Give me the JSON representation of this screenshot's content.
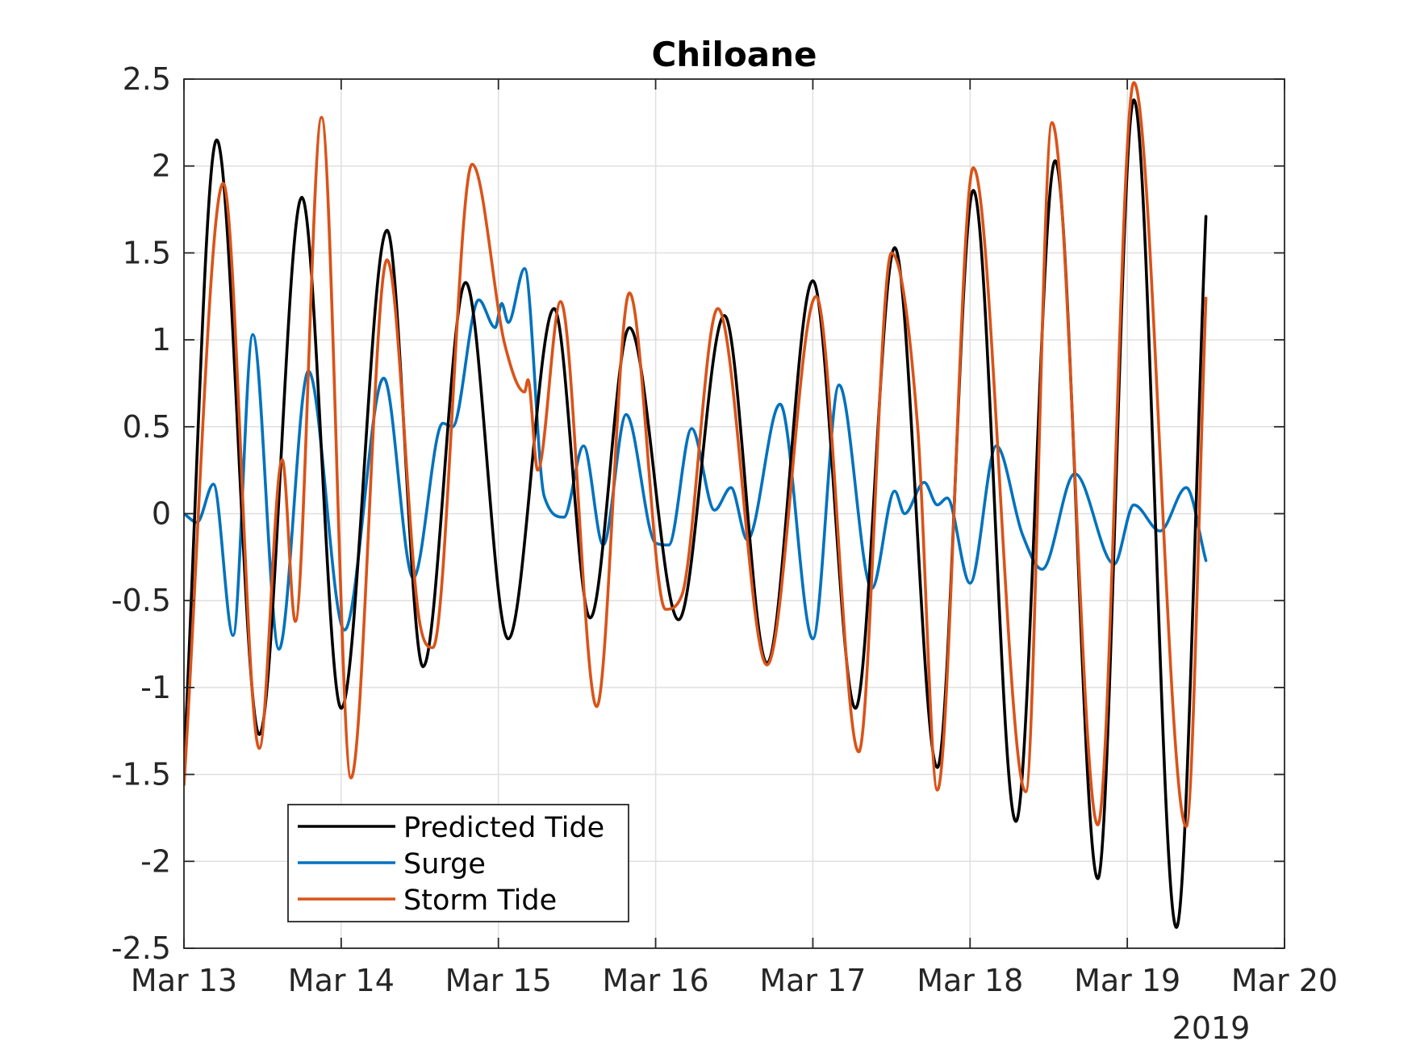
{
  "chart_data": {
    "type": "line",
    "title": "Chiloane",
    "xlabel": "",
    "ylabel": "",
    "x_unit": "date (March 2019)",
    "x_year_label": "2019",
    "xlim": [
      "2019-03-13T00:00",
      "2019-03-20T00:00"
    ],
    "ylim": [
      -2.5,
      2.5
    ],
    "x_ticks": [
      {
        "value": "2019-03-13",
        "label": "Mar 13"
      },
      {
        "value": "2019-03-14",
        "label": "Mar 14"
      },
      {
        "value": "2019-03-15",
        "label": "Mar 15"
      },
      {
        "value": "2019-03-16",
        "label": "Mar 16"
      },
      {
        "value": "2019-03-17",
        "label": "Mar 17"
      },
      {
        "value": "2019-03-18",
        "label": "Mar 18"
      },
      {
        "value": "2019-03-19",
        "label": "Mar 19"
      },
      {
        "value": "2019-03-20",
        "label": "Mar 20"
      }
    ],
    "y_ticks": [
      {
        "value": 2.5,
        "label": "2.5"
      },
      {
        "value": 2,
        "label": "2"
      },
      {
        "value": 1.5,
        "label": "1.5"
      },
      {
        "value": 1,
        "label": "1"
      },
      {
        "value": 0.5,
        "label": "0.5"
      },
      {
        "value": 0,
        "label": "0"
      },
      {
        "value": -0.5,
        "label": "-0.5"
      },
      {
        "value": -1,
        "label": "-1"
      },
      {
        "value": -1.5,
        "label": "-1.5"
      },
      {
        "value": -2,
        "label": "-2"
      },
      {
        "value": -2.5,
        "label": "-2.5"
      }
    ],
    "grid": true,
    "legend_position": "bottom-left",
    "series": [
      {
        "name": "Predicted Tide",
        "color": "#000000",
        "points": [
          [
            "2019-03-13T00:00",
            -1.44
          ],
          [
            "2019-03-13T05:00",
            2.15
          ],
          [
            "2019-03-13T11:30",
            -1.27
          ],
          [
            "2019-03-13T18:00",
            1.82
          ],
          [
            "2019-03-14T00:00",
            -1.12
          ],
          [
            "2019-03-14T07:00",
            1.63
          ],
          [
            "2019-03-14T12:30",
            -0.88
          ],
          [
            "2019-03-14T19:00",
            1.33
          ],
          [
            "2019-03-15T01:30",
            -0.72
          ],
          [
            "2019-03-15T08:30",
            1.18
          ],
          [
            "2019-03-15T14:00",
            -0.6
          ],
          [
            "2019-03-15T20:00",
            1.07
          ],
          [
            "2019-03-16T03:30",
            -0.61
          ],
          [
            "2019-03-16T10:30",
            1.14
          ],
          [
            "2019-03-16T17:00",
            -0.86
          ],
          [
            "2019-03-17T00:00",
            1.34
          ],
          [
            "2019-03-17T06:30",
            -1.12
          ],
          [
            "2019-03-17T12:30",
            1.53
          ],
          [
            "2019-03-17T19:00",
            -1.46
          ],
          [
            "2019-03-18T00:30",
            1.86
          ],
          [
            "2019-03-18T07:00",
            -1.77
          ],
          [
            "2019-03-18T13:00",
            2.03
          ],
          [
            "2019-03-18T19:30",
            -2.1
          ],
          [
            "2019-03-19T01:00",
            2.38
          ],
          [
            "2019-03-19T07:30",
            -2.38
          ],
          [
            "2019-03-19T12:00",
            1.71
          ]
        ]
      },
      {
        "name": "Surge",
        "color": "#0072bd",
        "points": [
          [
            "2019-03-13T00:00",
            0.0
          ],
          [
            "2019-03-13T02:00",
            -0.05
          ],
          [
            "2019-03-13T04:30",
            0.17
          ],
          [
            "2019-03-13T07:30",
            -0.7
          ],
          [
            "2019-03-13T10:30",
            1.03
          ],
          [
            "2019-03-13T14:30",
            -0.78
          ],
          [
            "2019-03-13T19:00",
            0.82
          ],
          [
            "2019-03-14T00:30",
            -0.67
          ],
          [
            "2019-03-14T06:30",
            0.78
          ],
          [
            "2019-03-14T11:00",
            -0.37
          ],
          [
            "2019-03-14T15:30",
            0.52
          ],
          [
            "2019-03-14T17:00",
            0.5
          ],
          [
            "2019-03-14T21:00",
            1.23
          ],
          [
            "2019-03-14T23:30",
            1.07
          ],
          [
            "2019-03-15T00:30",
            1.21
          ],
          [
            "2019-03-15T01:30",
            1.1
          ],
          [
            "2019-03-15T04:00",
            1.41
          ],
          [
            "2019-03-15T07:00",
            0.1
          ],
          [
            "2019-03-15T10:00",
            -0.02
          ],
          [
            "2019-03-15T13:00",
            0.39
          ],
          [
            "2019-03-15T16:00",
            -0.18
          ],
          [
            "2019-03-15T19:30",
            0.57
          ],
          [
            "2019-03-16T00:00",
            -0.17
          ],
          [
            "2019-03-16T02:00",
            -0.18
          ],
          [
            "2019-03-16T05:30",
            0.49
          ],
          [
            "2019-03-16T09:00",
            0.02
          ],
          [
            "2019-03-16T11:30",
            0.15
          ],
          [
            "2019-03-16T14:00",
            -0.15
          ],
          [
            "2019-03-16T19:00",
            0.63
          ],
          [
            "2019-03-17T00:00",
            -0.72
          ],
          [
            "2019-03-17T04:00",
            0.74
          ],
          [
            "2019-03-17T09:00",
            -0.43
          ],
          [
            "2019-03-17T12:30",
            0.13
          ],
          [
            "2019-03-17T14:00",
            0.0
          ],
          [
            "2019-03-17T17:00",
            0.18
          ],
          [
            "2019-03-17T19:00",
            0.05
          ],
          [
            "2019-03-17T20:30",
            0.09
          ],
          [
            "2019-03-18T00:00",
            -0.4
          ],
          [
            "2019-03-18T04:00",
            0.39
          ],
          [
            "2019-03-18T08:00",
            -0.12
          ],
          [
            "2019-03-18T11:00",
            -0.32
          ],
          [
            "2019-03-18T16:00",
            0.23
          ],
          [
            "2019-03-18T22:00",
            -0.29
          ],
          [
            "2019-03-19T01:00",
            0.05
          ],
          [
            "2019-03-19T05:00",
            -0.1
          ],
          [
            "2019-03-19T09:00",
            0.15
          ],
          [
            "2019-03-19T12:00",
            -0.27
          ]
        ]
      },
      {
        "name": "Storm Tide",
        "color": "#d95319",
        "points": [
          [
            "2019-03-13T00:00",
            -1.56
          ],
          [
            "2019-03-13T06:00",
            1.9
          ],
          [
            "2019-03-13T11:30",
            -1.35
          ],
          [
            "2019-03-13T15:00",
            0.31
          ],
          [
            "2019-03-13T17:00",
            -0.62
          ],
          [
            "2019-03-13T21:00",
            2.28
          ],
          [
            "2019-03-14T01:30",
            -1.52
          ],
          [
            "2019-03-14T07:00",
            1.46
          ],
          [
            "2019-03-14T12:00",
            -0.63
          ],
          [
            "2019-03-14T14:00",
            -0.77
          ],
          [
            "2019-03-14T20:00",
            2.01
          ],
          [
            "2019-03-15T01:00",
            0.97
          ],
          [
            "2019-03-15T04:00",
            0.7
          ],
          [
            "2019-03-15T04:30",
            0.77
          ],
          [
            "2019-03-15T06:00",
            0.25
          ],
          [
            "2019-03-15T09:30",
            1.22
          ],
          [
            "2019-03-15T15:00",
            -1.11
          ],
          [
            "2019-03-15T20:00",
            1.27
          ],
          [
            "2019-03-16T01:30",
            -0.55
          ],
          [
            "2019-03-16T04:00",
            -0.47
          ],
          [
            "2019-03-16T09:30",
            1.18
          ],
          [
            "2019-03-16T17:00",
            -0.87
          ],
          [
            "2019-03-17T00:30",
            1.25
          ],
          [
            "2019-03-17T07:00",
            -1.37
          ],
          [
            "2019-03-17T12:00",
            1.5
          ],
          [
            "2019-03-17T16:00",
            0.5
          ],
          [
            "2019-03-17T19:00",
            -1.59
          ],
          [
            "2019-03-18T00:30",
            1.99
          ],
          [
            "2019-03-18T08:30",
            -1.6
          ],
          [
            "2019-03-18T12:30",
            2.25
          ],
          [
            "2019-03-18T19:30",
            -1.79
          ],
          [
            "2019-03-19T01:00",
            2.48
          ],
          [
            "2019-03-19T09:00",
            -1.8
          ],
          [
            "2019-03-19T12:00",
            1.24
          ]
        ]
      }
    ]
  }
}
